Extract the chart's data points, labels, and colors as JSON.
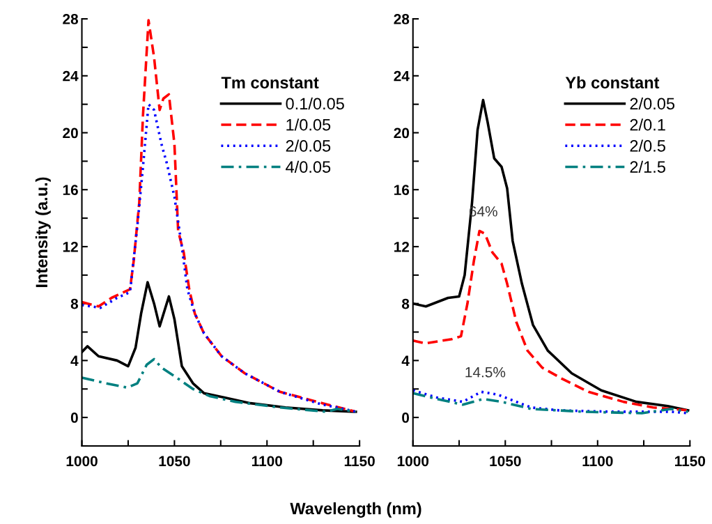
{
  "chart_data": [
    {
      "type": "line",
      "legend_title": "Tm constant",
      "ylabel": "Intensity (a.u.)",
      "xlabel": "Wavelength (nm)",
      "legend": "top right",
      "grid": false,
      "marker": "none",
      "xlim": [
        1000,
        1150
      ],
      "xticks": [
        1000,
        {
          "value": 1025,
          "label": null
        },
        1050,
        {
          "value": 1075,
          "label": null
        },
        1100,
        {
          "value": 1125,
          "label": null
        },
        1150
      ],
      "ylim": [
        -2,
        28
      ],
      "yticks": [
        {
          "value": -2,
          "label": null
        },
        0,
        {
          "value": 2,
          "label": null
        },
        4,
        {
          "value": 6,
          "label": null
        },
        8,
        {
          "value": 10,
          "label": null
        },
        12,
        {
          "value": 14,
          "label": null
        },
        16,
        {
          "value": 18,
          "label": null
        },
        20,
        {
          "value": 22,
          "label": null
        },
        24,
        {
          "value": 26,
          "label": null
        },
        28
      ],
      "series": [
        {
          "name": "0.1/0.05",
          "color": "#000000",
          "line_style": "solid",
          "x": [
            1000,
            1003,
            1009,
            1019,
            1025,
            1029,
            1032,
            1035.5,
            1039,
            1042,
            1047,
            1050,
            1054,
            1060,
            1066,
            1077,
            1091,
            1110,
            1130,
            1148
          ],
          "values": [
            4.6,
            5.0,
            4.3,
            4.0,
            3.6,
            4.9,
            7.3,
            9.5,
            8.0,
            6.4,
            8.5,
            6.9,
            3.6,
            2.4,
            1.7,
            1.4,
            1.0,
            0.7,
            0.5,
            0.4
          ]
        },
        {
          "name": "1/0.05",
          "color": "#ff0000",
          "line_style": "dashed",
          "x": [
            1000,
            1009,
            1016,
            1021,
            1026,
            1028,
            1031,
            1033,
            1036,
            1039,
            1042,
            1044,
            1047,
            1050,
            1052,
            1055,
            1058,
            1061,
            1066,
            1075.5,
            1088,
            1107,
            1130,
            1148
          ],
          "values": [
            8.1,
            7.8,
            8.4,
            8.7,
            9.0,
            11.0,
            15.1,
            21.2,
            27.9,
            25.3,
            21.6,
            22.4,
            22.7,
            19.2,
            13.1,
            11.6,
            9.0,
            7.3,
            5.9,
            4.3,
            3.1,
            1.8,
            1.0,
            0.4
          ]
        },
        {
          "name": "2/0.05",
          "color": "#0000ff",
          "line_style": "dotted",
          "x": [
            1000,
            1010,
            1019,
            1026,
            1030,
            1033,
            1036,
            1039,
            1043,
            1046,
            1050,
            1054,
            1057,
            1061,
            1066,
            1075.5,
            1088,
            1107,
            1130,
            1138,
            1148
          ],
          "values": [
            7.9,
            7.7,
            8.4,
            8.8,
            13.5,
            17.6,
            22.0,
            21.6,
            19.2,
            17.8,
            15.5,
            12.0,
            9.0,
            7.3,
            5.9,
            4.3,
            3.1,
            1.8,
            0.9,
            0.7,
            0.4
          ]
        },
        {
          "name": "4/0.05",
          "color": "#008080",
          "line_style": "dashdot",
          "x": [
            1000,
            1013,
            1024.5,
            1030,
            1035,
            1039,
            1043,
            1050,
            1060,
            1069,
            1083,
            1107,
            1132,
            1138,
            1148
          ],
          "values": [
            2.8,
            2.4,
            2.1,
            2.4,
            3.7,
            4.1,
            3.5,
            2.9,
            2.0,
            1.5,
            1.1,
            0.7,
            0.4,
            0.6,
            0.4
          ]
        }
      ]
    },
    {
      "type": "line",
      "legend_title": "Yb constant",
      "legend": "top right",
      "grid": false,
      "marker": "none",
      "xlim": [
        1000,
        1150
      ],
      "xticks": [
        1000,
        {
          "value": 1025,
          "label": null
        },
        1050,
        {
          "value": 1075,
          "label": null
        },
        1100,
        {
          "value": 1125,
          "label": null
        },
        1150
      ],
      "ylim": [
        -2,
        28
      ],
      "yticks": [
        {
          "value": -2,
          "label": null
        },
        0,
        {
          "value": 2,
          "label": null
        },
        4,
        {
          "value": 6,
          "label": null
        },
        8,
        {
          "value": 10,
          "label": null
        },
        12,
        {
          "value": 14,
          "label": null
        },
        16,
        {
          "value": 18,
          "label": null
        },
        20,
        {
          "value": 22,
          "label": null
        },
        24,
        {
          "value": 26,
          "label": null
        },
        28
      ],
      "annotations": [
        {
          "text": "64%",
          "x": 1036,
          "y": 13.1
        },
        {
          "text": "14.5%",
          "x": 1037,
          "y": 1.8
        }
      ],
      "series": [
        {
          "name": "2/0.05",
          "color": "#000000",
          "line_style": "solid",
          "x": [
            1000,
            1007,
            1019,
            1025,
            1028,
            1032,
            1035,
            1038,
            1040.5,
            1044,
            1048,
            1051,
            1054,
            1059,
            1065,
            1073,
            1086,
            1102,
            1121,
            1138,
            1149
          ],
          "values": [
            8.0,
            7.8,
            8.4,
            8.5,
            10.0,
            15.1,
            20.2,
            22.3,
            20.7,
            18.2,
            17.6,
            16.1,
            12.4,
            9.4,
            6.5,
            4.7,
            3.1,
            1.9,
            1.1,
            0.8,
            0.5
          ]
        },
        {
          "name": "2/0.1",
          "color": "#ff0000",
          "line_style": "dashed",
          "x": [
            1000,
            1006.5,
            1021,
            1026,
            1029.5,
            1033,
            1036,
            1039,
            1043,
            1048,
            1051,
            1056,
            1062,
            1070,
            1081,
            1095,
            1114,
            1130,
            1140,
            1149
          ],
          "values": [
            5.4,
            5.2,
            5.5,
            5.7,
            8.0,
            11.0,
            13.1,
            12.9,
            11.6,
            10.8,
            9.4,
            6.7,
            4.7,
            3.5,
            2.7,
            1.8,
            1.1,
            0.7,
            0.6,
            0.5
          ]
        },
        {
          "name": "2/0.5",
          "color": "#0000ff",
          "line_style": "dotted",
          "x": [
            1000,
            1013,
            1027,
            1037,
            1046,
            1064,
            1079,
            1108,
            1140,
            1149
          ],
          "values": [
            1.9,
            1.4,
            1.1,
            1.8,
            1.6,
            0.7,
            0.5,
            0.4,
            0.4,
            0.3
          ]
        },
        {
          "name": "2/1.5",
          "color": "#008080",
          "line_style": "dashdot",
          "x": [
            1000,
            1013,
            1027,
            1038,
            1048,
            1064,
            1092,
            1124,
            1140,
            1149
          ],
          "values": [
            1.7,
            1.3,
            0.9,
            1.3,
            1.1,
            0.6,
            0.4,
            0.3,
            0.6,
            0.4
          ]
        }
      ]
    }
  ]
}
